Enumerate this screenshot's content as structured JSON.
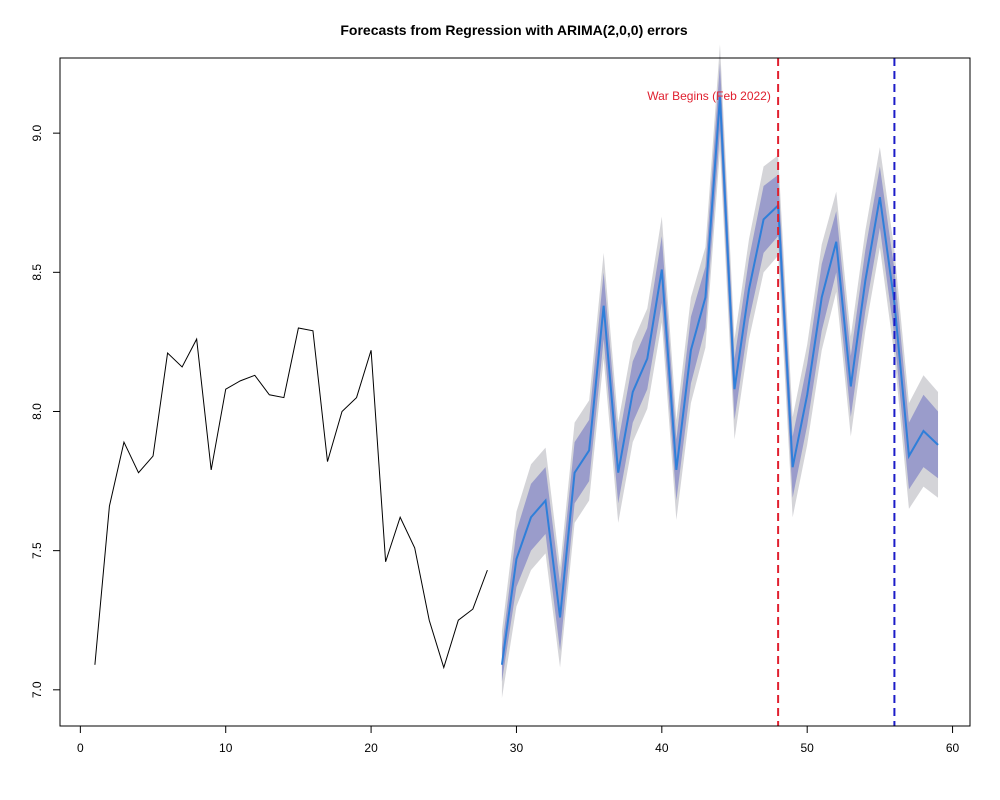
{
  "chart_data": {
    "type": "line",
    "title": "Forecasts from Regression with ARIMA(2,0,0) errors",
    "xlabel": "",
    "ylabel": "",
    "xlim": [
      -1.4,
      61.2
    ],
    "ylim": [
      6.87,
      9.27
    ],
    "x_ticks": [
      0,
      10,
      20,
      30,
      40,
      50,
      60
    ],
    "y_ticks": [
      7.0,
      7.5,
      8.0,
      8.5,
      9.0
    ],
    "y_tick_labels": [
      "7.0",
      "7.5",
      "8.0",
      "8.5",
      "9.0"
    ],
    "grid": false,
    "observed": {
      "color": "#000000",
      "x": [
        1,
        2,
        3,
        4,
        5,
        6,
        7,
        8,
        9,
        10,
        11,
        12,
        13,
        14,
        15,
        16,
        17,
        18,
        19,
        20,
        21,
        22,
        23,
        24,
        25,
        26,
        27,
        28
      ],
      "y": [
        7.09,
        7.66,
        7.89,
        7.78,
        7.84,
        8.21,
        8.16,
        8.26,
        7.79,
        8.08,
        8.11,
        8.13,
        8.06,
        8.05,
        8.3,
        8.29,
        7.82,
        8.0,
        8.05,
        8.22,
        7.46,
        7.62,
        7.51,
        7.25,
        7.08,
        7.25,
        7.29,
        7.43
      ]
    },
    "forecast": {
      "color": "#2f7fd9",
      "band80_color": "#9a9ccb",
      "band95_color": "#d4d4d8",
      "x": [
        29,
        30,
        31,
        32,
        33,
        34,
        35,
        36,
        37,
        38,
        39,
        40,
        41,
        42,
        43,
        44,
        45,
        46,
        47,
        48,
        49,
        50,
        51,
        52,
        53,
        54,
        55,
        56,
        57,
        58,
        59
      ],
      "mean": [
        7.09,
        7.47,
        7.62,
        7.68,
        7.26,
        7.78,
        7.86,
        8.38,
        7.78,
        8.07,
        8.19,
        8.51,
        7.79,
        8.22,
        8.41,
        9.13,
        8.08,
        8.44,
        8.69,
        8.74,
        7.8,
        8.06,
        8.41,
        8.61,
        8.09,
        8.47,
        8.77,
        8.39,
        7.84,
        7.93,
        7.88
      ],
      "lo80": [
        7.03,
        7.37,
        7.5,
        7.56,
        7.14,
        7.67,
        7.75,
        8.26,
        7.67,
        7.96,
        8.08,
        8.39,
        7.68,
        8.1,
        8.3,
        9.01,
        7.97,
        8.33,
        8.57,
        8.63,
        7.69,
        7.95,
        8.29,
        8.5,
        7.98,
        8.36,
        8.66,
        8.27,
        7.72,
        7.8,
        7.76
      ],
      "hi80": [
        7.15,
        7.57,
        7.74,
        7.8,
        7.38,
        7.89,
        7.97,
        8.5,
        7.89,
        8.18,
        8.3,
        8.63,
        7.9,
        8.34,
        8.52,
        9.25,
        8.19,
        8.55,
        8.81,
        8.85,
        7.91,
        8.17,
        8.53,
        8.72,
        8.2,
        8.58,
        8.88,
        8.51,
        7.96,
        8.06,
        8.0
      ],
      "lo95": [
        6.97,
        7.3,
        7.43,
        7.49,
        7.08,
        7.6,
        7.68,
        8.19,
        7.6,
        7.89,
        8.01,
        8.32,
        7.61,
        8.03,
        8.23,
        8.94,
        7.9,
        8.26,
        8.5,
        8.56,
        7.62,
        7.88,
        8.22,
        8.43,
        7.91,
        8.29,
        8.59,
        8.2,
        7.65,
        7.73,
        7.69
      ],
      "hi95": [
        7.21,
        7.64,
        7.81,
        7.87,
        7.44,
        7.96,
        8.04,
        8.57,
        7.96,
        8.25,
        8.37,
        8.7,
        7.97,
        8.41,
        8.59,
        9.32,
        8.26,
        8.62,
        8.88,
        8.92,
        7.98,
        8.24,
        8.6,
        8.79,
        8.27,
        8.65,
        8.95,
        8.58,
        8.03,
        8.13,
        8.07
      ]
    },
    "vlines": [
      {
        "x": 48,
        "color": "#e0202f"
      },
      {
        "x": 56,
        "color": "#1c1cc8"
      }
    ],
    "annotations": [
      {
        "text": "War Begins (Feb 2022)",
        "x": 47.5,
        "y": 9.12,
        "color": "#e0202f",
        "anchor": "end"
      }
    ]
  }
}
